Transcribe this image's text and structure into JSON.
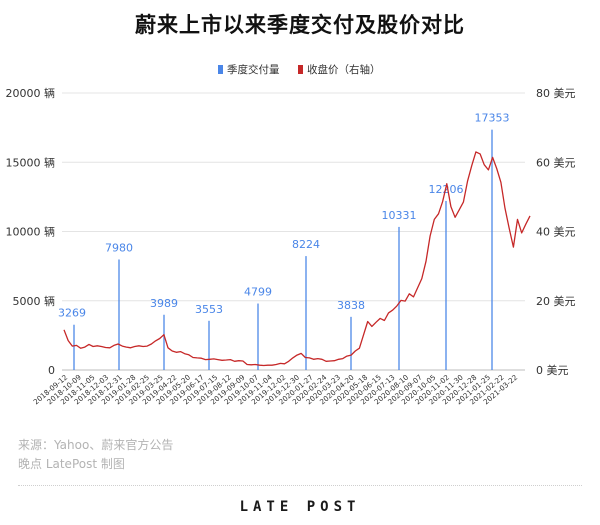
{
  "chart_data": {
    "type": "bar+line",
    "title": "蔚来上市以来季度交付及股价对比",
    "legend": {
      "placement": "top-center",
      "items": [
        {
          "label": "季度交付量",
          "color": "#4a86e8",
          "kind": "bar"
        },
        {
          "label": "收盘价（右轴）",
          "color": "#c62828",
          "kind": "line"
        }
      ]
    },
    "y_left": {
      "ylim": [
        0,
        20000
      ],
      "ticks": [
        0,
        5000,
        10000,
        15000,
        20000
      ],
      "tick_labels": [
        "0",
        "5000 辆",
        "10000 辆",
        "15000 辆",
        "20000 辆"
      ]
    },
    "y_right": {
      "ylim": [
        0,
        80
      ],
      "ticks": [
        0,
        20,
        40,
        60,
        80
      ],
      "tick_labels": [
        "0 美元",
        "20 美元",
        "40 美元",
        "60 美元",
        "80 美元"
      ]
    },
    "x_tick_labels": [
      "2018-09-12",
      "2018-10-09",
      "2018-11-05",
      "2018-12-03",
      "2018-12-31",
      "2019-01-28",
      "2019-02-25",
      "2019-03-25",
      "2019-04-22",
      "2019-05-20",
      "2019-06-17",
      "2019-07-15",
      "2019-08-12",
      "2019-09-09",
      "2019-10-07",
      "2019-11-04",
      "2019-12-02",
      "2019-12-30",
      "2020-01-27",
      "2020-02-24",
      "2020-03-23",
      "2020-04-20",
      "2020-05-18",
      "2020-06-15",
      "2020-07-13",
      "2020-08-10",
      "2020-09-07",
      "2020-10-05",
      "2020-11-02",
      "2020-11-30",
      "2020-12-28",
      "2021-01-25",
      "2021-02-22",
      "2021-03-22"
    ],
    "bars": [
      {
        "value": 3269,
        "label": "3269"
      },
      {
        "value": 7980,
        "label": "7980"
      },
      {
        "value": 3989,
        "label": "3989"
      },
      {
        "value": 3553,
        "label": "3553"
      },
      {
        "value": 4799,
        "label": "4799"
      },
      {
        "value": 8224,
        "label": "8224"
      },
      {
        "value": 3838,
        "label": "3838"
      },
      {
        "value": 10331,
        "label": "10331"
      },
      {
        "value": 12206,
        "label": "12206"
      },
      {
        "value": 17353,
        "label": "17353"
      }
    ],
    "price_series": {
      "name": "收盘价（右轴）",
      "values": [
        11.6,
        8.5,
        6.9,
        7.1,
        6.3,
        6.6,
        7.4,
        6.8,
        7.0,
        6.8,
        6.5,
        6.4,
        7.1,
        7.5,
        6.9,
        6.6,
        6.4,
        6.8,
        7.0,
        6.8,
        6.9,
        7.5,
        8.4,
        9.1,
        10.2,
        6.4,
        5.5,
        5.1,
        5.3,
        4.7,
        4.4,
        3.6,
        3.5,
        3.4,
        3.0,
        3.1,
        3.2,
        3.0,
        2.8,
        2.9,
        3.0,
        2.5,
        2.7,
        2.6,
        1.6,
        1.5,
        1.6,
        1.4,
        1.3,
        1.4,
        1.4,
        1.6,
        1.9,
        1.8,
        2.5,
        3.5,
        4.3,
        4.8,
        3.6,
        3.5,
        3.1,
        3.3,
        3.1,
        2.5,
        2.6,
        2.7,
        3.1,
        3.3,
        4.0,
        4.3,
        5.5,
        6.3,
        10.2,
        14.0,
        12.6,
        13.8,
        14.9,
        14.3,
        16.5,
        17.3,
        18.5,
        20.1,
        19.9,
        22.0,
        21.1,
        23.8,
        26.4,
        31.4,
        38.7,
        43.5,
        45.1,
        48.6,
        53.8,
        47.2,
        44.1,
        46.3,
        48.5,
        54.6,
        59.1,
        63.0,
        62.4,
        59.3,
        57.8,
        61.4,
        58.2,
        54.2,
        46.7,
        40.9,
        35.5,
        43.5,
        39.6,
        42.1,
        44.5
      ]
    }
  },
  "source": {
    "line1": "来源：Yahoo、蔚来官方公告",
    "line2": "晚点 LatePost 制图"
  },
  "brand": "LATE POST"
}
